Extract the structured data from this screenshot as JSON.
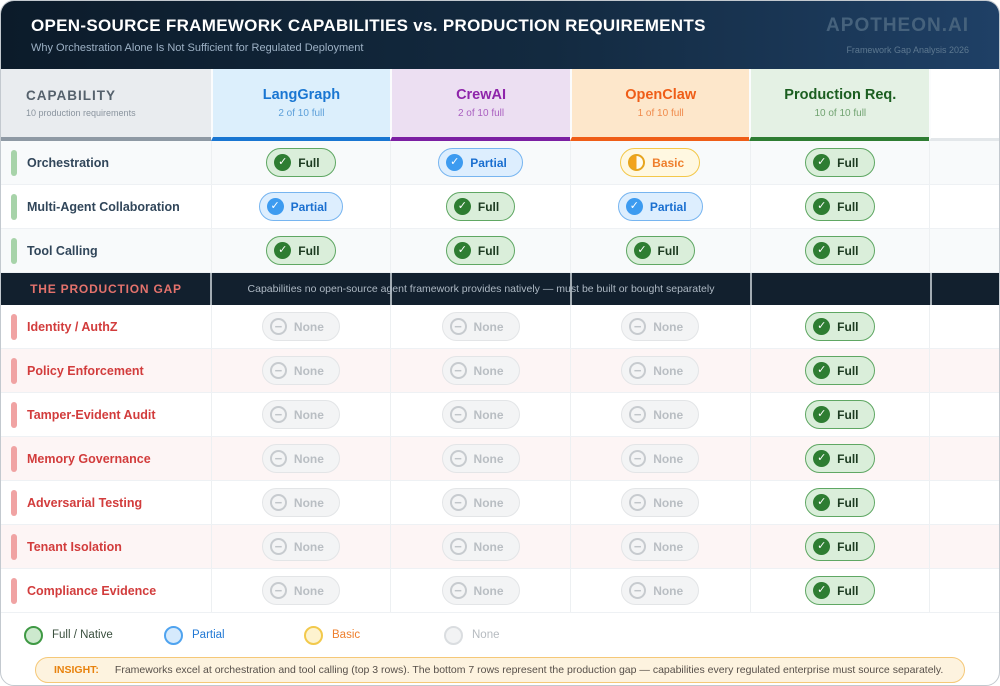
{
  "header": {
    "title": "OPEN-SOURCE FRAMEWORK CAPABILITIES vs. PRODUCTION REQUIREMENTS",
    "subtitle": "Why Orchestration Alone Is Not Sufficient for Regulated Deployment",
    "brand": "APOTHEON.AI",
    "brand_sub": "Framework Gap Analysis 2026"
  },
  "columns": [
    {
      "id": "capability",
      "label": "CAPABILITY",
      "sublabel": "10 production requirements",
      "accent": "#8e99a4"
    },
    {
      "id": "langgraph",
      "label": "LangGraph",
      "sublabel": "2 of 10 full",
      "accent": "#1976d2"
    },
    {
      "id": "crewai",
      "label": "CrewAI",
      "sublabel": "2 of 10 full",
      "accent": "#7b1fa2"
    },
    {
      "id": "openclaw",
      "label": "OpenClaw",
      "sublabel": "1 of 10 full",
      "accent": "#ef5d17"
    },
    {
      "id": "production",
      "label": "Production Req.",
      "sublabel": "10 of 10 full",
      "accent": "#2e7d32"
    }
  ],
  "statuses": {
    "full": {
      "label": "Full",
      "color": "#2e7d32"
    },
    "partial": {
      "label": "Partial",
      "color": "#3d9bf0"
    },
    "basic": {
      "label": "Basic",
      "color": "#f2a31d"
    },
    "none": {
      "label": "None",
      "color": "#c0c5c9"
    }
  },
  "rows": [
    {
      "name": "Orchestration",
      "section": "framework",
      "cells": [
        "full",
        "partial",
        "basic",
        "full"
      ]
    },
    {
      "name": "Multi-Agent Collaboration",
      "section": "framework",
      "cells": [
        "partial",
        "full",
        "partial",
        "full"
      ]
    },
    {
      "name": "Tool Calling",
      "section": "framework",
      "cells": [
        "full",
        "full",
        "full",
        "full"
      ]
    },
    {
      "name": "Identity / AuthZ",
      "section": "gap",
      "cells": [
        "none",
        "none",
        "none",
        "full"
      ]
    },
    {
      "name": "Policy Enforcement",
      "section": "gap",
      "cells": [
        "none",
        "none",
        "none",
        "full"
      ]
    },
    {
      "name": "Tamper-Evident Audit",
      "section": "gap",
      "cells": [
        "none",
        "none",
        "none",
        "full"
      ]
    },
    {
      "name": "Memory Governance",
      "section": "gap",
      "cells": [
        "none",
        "none",
        "none",
        "full"
      ]
    },
    {
      "name": "Adversarial Testing",
      "section": "gap",
      "cells": [
        "none",
        "none",
        "none",
        "full"
      ]
    },
    {
      "name": "Tenant Isolation",
      "section": "gap",
      "cells": [
        "none",
        "none",
        "none",
        "full"
      ]
    },
    {
      "name": "Compliance Evidence",
      "section": "gap",
      "cells": [
        "none",
        "none",
        "none",
        "full"
      ]
    }
  ],
  "gap_band": {
    "label": "THE PRODUCTION GAP",
    "description": "Capabilities no open-source agent framework provides natively — must be built or bought separately"
  },
  "legend": {
    "items": [
      {
        "status": "full",
        "label": "Full / Native"
      },
      {
        "status": "partial",
        "label": "Partial"
      },
      {
        "status": "basic",
        "label": "Basic"
      },
      {
        "status": "none",
        "label": "None"
      }
    ]
  },
  "insight": {
    "label": "INSIGHT:",
    "text": "Frameworks excel at orchestration and tool calling (top 3 rows). The bottom 7 rows represent the production gap — capabilities every regulated enterprise must source separately."
  },
  "chart_data": {
    "type": "table",
    "title": "OPEN-SOURCE FRAMEWORK CAPABILITIES vs. PRODUCTION REQUIREMENTS",
    "subtitle": "Why Orchestration Alone Is Not Sufficient for Regulated Deployment",
    "columns": [
      "Capability",
      "LangGraph",
      "CrewAI",
      "OpenClaw",
      "Production Req."
    ],
    "column_subtitles": [
      "10 production requirements",
      "2 of 10 full",
      "2 of 10 full",
      "1 of 10 full",
      "10 of 10 full"
    ],
    "rows": [
      [
        "Orchestration",
        "Full",
        "Partial",
        "Basic",
        "Full"
      ],
      [
        "Multi-Agent Collaboration",
        "Partial",
        "Full",
        "Partial",
        "Full"
      ],
      [
        "Tool Calling",
        "Full",
        "Full",
        "Full",
        "Full"
      ],
      [
        "Identity / AuthZ",
        "None",
        "None",
        "None",
        "Full"
      ],
      [
        "Policy Enforcement",
        "None",
        "None",
        "None",
        "Full"
      ],
      [
        "Tamper-Evident Audit",
        "None",
        "None",
        "None",
        "Full"
      ],
      [
        "Memory Governance",
        "None",
        "None",
        "None",
        "Full"
      ],
      [
        "Adversarial Testing",
        "None",
        "None",
        "None",
        "Full"
      ],
      [
        "Tenant Isolation",
        "None",
        "None",
        "None",
        "Full"
      ],
      [
        "Compliance Evidence",
        "None",
        "None",
        "None",
        "Full"
      ]
    ],
    "section_divider": {
      "after_row": 3,
      "label": "THE PRODUCTION GAP",
      "description": "Capabilities no open-source agent framework provides natively — must be built or bought separately"
    },
    "legend": [
      "Full / Native",
      "Partial",
      "Basic",
      "None"
    ]
  }
}
